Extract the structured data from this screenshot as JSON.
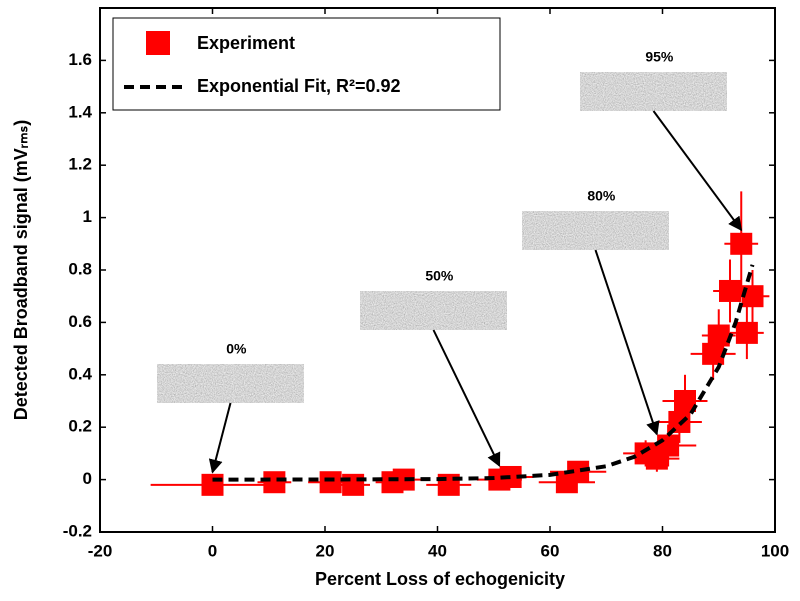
{
  "chart_data": {
    "type": "scatter",
    "xlabel": "Percent Loss of echogenicity",
    "ylabel": "Detected Broadband signal (mVᵣₘₛ)",
    "xlim": [
      -20,
      100
    ],
    "ylim": [
      -0.2,
      1.8
    ],
    "xticks": [
      -20,
      0,
      20,
      40,
      60,
      80,
      100
    ],
    "yticks": [
      -0.2,
      0,
      0.2,
      0.4,
      0.6,
      0.8,
      1,
      1.2,
      1.4,
      1.6
    ],
    "grid": false,
    "legend": "upper left",
    "series": [
      {
        "name": "Experiment",
        "color": "#ff0000",
        "x": [
          0,
          11,
          21,
          25,
          32,
          34,
          42,
          51,
          53,
          63,
          65,
          77,
          79,
          81,
          83,
          84,
          89,
          90,
          92,
          94,
          95,
          96
        ],
        "values": [
          -0.02,
          -0.01,
          -0.01,
          -0.02,
          -0.01,
          0.0,
          -0.02,
          0.0,
          0.01,
          -0.01,
          0.03,
          0.1,
          0.08,
          0.13,
          0.22,
          0.3,
          0.48,
          0.55,
          0.72,
          0.9,
          0.56,
          0.7
        ],
        "xerr": [
          11,
          3,
          4,
          3,
          3,
          3,
          4,
          4,
          4,
          5,
          5,
          4,
          4,
          5,
          4,
          4,
          4,
          3,
          3,
          3,
          3,
          3
        ],
        "yerr": [
          0.02,
          0.01,
          0.02,
          0.01,
          0.02,
          0.02,
          0.02,
          0.03,
          0.03,
          0.03,
          0.04,
          0.05,
          0.05,
          0.08,
          0.08,
          0.1,
          0.1,
          0.1,
          0.12,
          0.2,
          0.1,
          0.1
        ]
      },
      {
        "name": "Exponential Fit, R²=0.92",
        "color": "#000000",
        "x": [
          0,
          20,
          40,
          50,
          60,
          70,
          75,
          80,
          85,
          90,
          93,
          96
        ],
        "values": [
          0,
          0.0003,
          0.002,
          0.006,
          0.018,
          0.051,
          0.087,
          0.15,
          0.25,
          0.43,
          0.6,
          0.82
        ]
      }
    ],
    "annotations": [
      {
        "text": "0%",
        "x": 0,
        "y": 0.005
      },
      {
        "text": "50%",
        "x": 51,
        "y": 0.03
      },
      {
        "text": "80%",
        "x": 79,
        "y": 0.15
      },
      {
        "text": "95%",
        "x": 94,
        "y": 0.93
      }
    ]
  }
}
